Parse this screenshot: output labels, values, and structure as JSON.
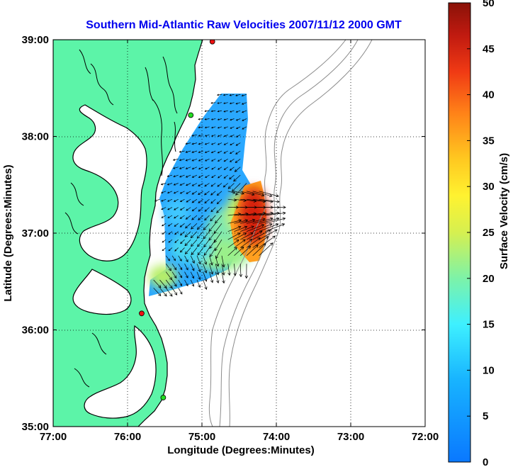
{
  "title": "Southern Mid-Atlantic Raw Velocities 2007/11/12 2000 GMT",
  "colors": {
    "title": "#0000ee",
    "land": "#5cf4a8",
    "water": "#ffffff",
    "coast": "#000000",
    "bathy": "#8c8c8c",
    "station_green": "#22dd22",
    "station_red": "#ee1111",
    "vector": "#000000"
  },
  "map": {
    "xlabel": "Longitude (Degrees:Minutes)",
    "ylabel": "Latitude (Degrees:Minutes)",
    "lon_range": [
      -77,
      -72
    ],
    "lat_range": [
      35,
      39
    ],
    "x_ticks": [
      {
        "lon": -77,
        "label": "77:00"
      },
      {
        "lon": -76,
        "label": "76:00"
      },
      {
        "lon": -75,
        "label": "75:00"
      },
      {
        "lon": -74,
        "label": "74:00"
      },
      {
        "lon": -73,
        "label": "73:00"
      },
      {
        "lon": -72,
        "label": "72:00"
      }
    ],
    "y_ticks": [
      {
        "lat": 35,
        "label": "35:00"
      },
      {
        "lat": 36,
        "label": "36:00"
      },
      {
        "lat": 37,
        "label": "37:00"
      },
      {
        "lat": 38,
        "label": "38:00"
      },
      {
        "lat": 39,
        "label": "39:00"
      }
    ],
    "grid": "dotted",
    "stations": [
      {
        "lon": -74.86,
        "lat": 38.98,
        "color": "red"
      },
      {
        "lon": -75.15,
        "lat": 38.22,
        "color": "green"
      },
      {
        "lon": -75.81,
        "lat": 36.17,
        "color": "red"
      },
      {
        "lon": -75.52,
        "lat": 35.3,
        "color": "green"
      }
    ]
  },
  "colorbar": {
    "label": "Surface Velocity (cm/s)",
    "min": 0,
    "max": 50,
    "ticks": [
      0,
      5,
      10,
      15,
      20,
      25,
      30,
      35,
      40,
      45,
      50
    ],
    "colormap": "jet"
  },
  "chart_data": {
    "type": "heatmap",
    "title": "Southern Mid-Atlantic Raw Velocities 2007/11/12 2000 GMT",
    "xlabel": "Longitude (Degrees:Minutes)",
    "ylabel": "Latitude (Degrees:Minutes)",
    "xlim": [
      -77,
      -72
    ],
    "ylim": [
      35,
      39
    ],
    "value_label": "Surface Velocity (cm/s)",
    "value_range": [
      0,
      50
    ],
    "velocity_field": [
      {
        "lon": -75.05,
        "lat": 38.2,
        "speed": 7
      },
      {
        "lon": -74.75,
        "lat": 38.1,
        "speed": 5
      },
      {
        "lon": -75.2,
        "lat": 37.8,
        "speed": 8
      },
      {
        "lon": -74.8,
        "lat": 37.7,
        "speed": 6
      },
      {
        "lon": -75.3,
        "lat": 37.4,
        "speed": 7
      },
      {
        "lon": -74.9,
        "lat": 37.35,
        "speed": 10
      },
      {
        "lon": -75.4,
        "lat": 36.95,
        "speed": 6
      },
      {
        "lon": -75.0,
        "lat": 36.9,
        "speed": 18
      },
      {
        "lon": -74.6,
        "lat": 37.0,
        "speed": 30
      },
      {
        "lon": -74.25,
        "lat": 37.05,
        "speed": 48
      },
      {
        "lon": -74.2,
        "lat": 37.3,
        "speed": 47
      },
      {
        "lon": -75.3,
        "lat": 36.55,
        "speed": 12
      },
      {
        "lon": -74.75,
        "lat": 36.6,
        "speed": 24
      },
      {
        "lon": -75.55,
        "lat": 36.5,
        "speed": 22
      }
    ]
  }
}
